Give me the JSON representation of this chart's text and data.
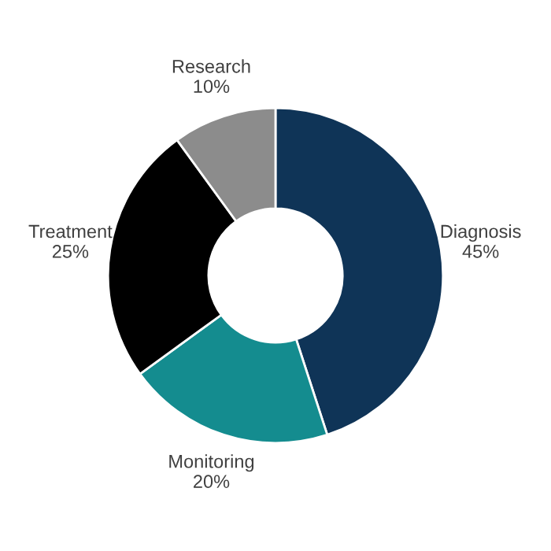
{
  "chart_data": {
    "type": "donut",
    "categories": [
      "Diagnosis",
      "Monitoring",
      "Treatment",
      "Research"
    ],
    "values": [
      45,
      20,
      25,
      10
    ],
    "value_labels": [
      "45%",
      "20%",
      "25%",
      "10%"
    ],
    "colors": [
      "#0f3457",
      "#148c8f",
      "#000000",
      "#8c8c8c"
    ],
    "legend": false
  }
}
